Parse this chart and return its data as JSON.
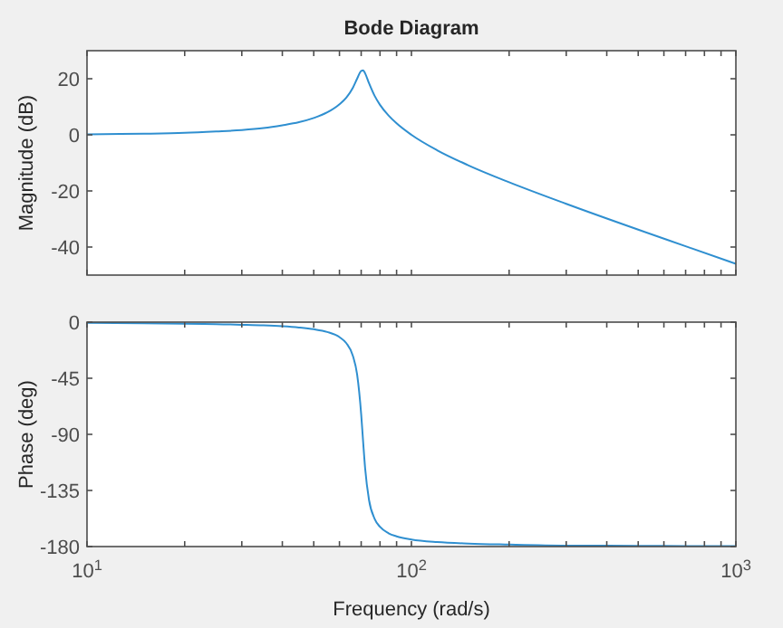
{
  "chart_data": [
    {
      "type": "line",
      "title": "Bode Diagram",
      "ylabel": "Magnitude (dB)",
      "log": "x",
      "grid": false,
      "tick_labels": "y",
      "xlim": [
        10,
        1000
      ],
      "xticks": [
        {
          "value": 10,
          "label": null
        },
        {
          "value": 20,
          "label": null
        },
        {
          "value": 30,
          "label": null
        },
        {
          "value": 40,
          "label": null
        },
        {
          "value": 50,
          "label": null
        },
        {
          "value": 60,
          "label": null
        },
        {
          "value": 70,
          "label": null
        },
        {
          "value": 80,
          "label": null
        },
        {
          "value": 90,
          "label": null
        },
        {
          "value": 100,
          "label": null
        },
        {
          "value": 200,
          "label": null
        },
        {
          "value": 300,
          "label": null
        },
        {
          "value": 400,
          "label": null
        },
        {
          "value": 500,
          "label": null
        },
        {
          "value": 600,
          "label": null
        },
        {
          "value": 700,
          "label": null
        },
        {
          "value": 800,
          "label": null
        },
        {
          "value": 900,
          "label": null
        },
        {
          "value": 1000,
          "label": null
        }
      ],
      "ylim": [
        -50,
        30
      ],
      "yticks": [
        -40,
        -20,
        0,
        20
      ],
      "x": [
        10,
        15,
        20,
        25,
        30,
        35,
        40,
        45,
        50,
        55,
        60,
        63,
        66,
        68,
        70,
        71,
        72,
        74,
        77,
        80,
        85,
        90,
        100,
        120,
        150,
        200,
        300,
        500,
        700,
        1000
      ],
      "series": [
        {
          "color": "#2f8fd0",
          "values": [
            0.2,
            0.4,
            0.7,
            1.2,
            1.7,
            2.4,
            3.4,
            4.5,
            6.0,
            8.0,
            10.9,
            13.3,
            16.8,
            20.0,
            22.8,
            23.0,
            21.9,
            18.4,
            13.9,
            10.7,
            6.9,
            4.1,
            0,
            -5.5,
            -10.9,
            -16.9,
            -24.6,
            -33.8,
            -39.7,
            -46
          ]
        }
      ]
    },
    {
      "type": "line",
      "xlabel": "Frequency (rad/s)",
      "ylabel": "Phase (deg)",
      "log": "x",
      "grid": false,
      "xlim": [
        10,
        1000
      ],
      "xticks": [
        {
          "value": 10,
          "label": "10$^{1}$"
        },
        {
          "value": 20,
          "label": null
        },
        {
          "value": 30,
          "label": null
        },
        {
          "value": 40,
          "label": null
        },
        {
          "value": 50,
          "label": null
        },
        {
          "value": 60,
          "label": null
        },
        {
          "value": 70,
          "label": null
        },
        {
          "value": 80,
          "label": null
        },
        {
          "value": 90,
          "label": null
        },
        {
          "value": 100,
          "label": "10$^{2}$"
        },
        {
          "value": 200,
          "label": null
        },
        {
          "value": 300,
          "label": null
        },
        {
          "value": 400,
          "label": null
        },
        {
          "value": 500,
          "label": null
        },
        {
          "value": 600,
          "label": null
        },
        {
          "value": 700,
          "label": null
        },
        {
          "value": 800,
          "label": null
        },
        {
          "value": 900,
          "label": null
        },
        {
          "value": 1000,
          "label": "10$^{3}$"
        }
      ],
      "ylim": [
        -180,
        0
      ],
      "yticks": [
        -180,
        -135,
        -90,
        -45,
        0
      ],
      "x": [
        10,
        15,
        20,
        25,
        30,
        35,
        40,
        45,
        50,
        55,
        60,
        63,
        66,
        68,
        70,
        71,
        72,
        74,
        77,
        80,
        85,
        90,
        100,
        120,
        150,
        200,
        300,
        500,
        700,
        1000
      ],
      "series": [
        {
          "color": "#2f8fd0",
          "values": [
            -0.6,
            -0.9,
            -1.2,
            -1.6,
            -2.1,
            -2.6,
            -3.3,
            -4.3,
            -5.7,
            -7.9,
            -12,
            -16.9,
            -27,
            -41.9,
            -73.9,
            -96.5,
            -117.4,
            -142.6,
            -157.7,
            -164.2,
            -169.3,
            -171.8,
            -174.3,
            -176.4,
            -177.6,
            -178.4,
            -179.2,
            -179.4,
            -179.6,
            -179.7
          ]
        }
      ]
    }
  ]
}
